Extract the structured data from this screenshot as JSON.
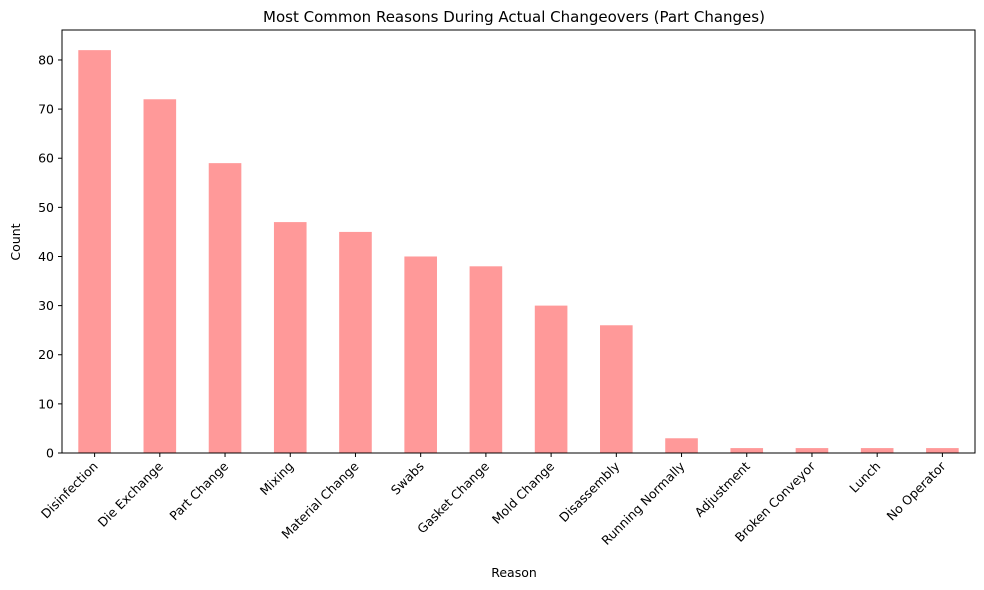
{
  "chart_data": {
    "type": "bar",
    "title": "Most Common Reasons During Actual Changeovers (Part Changes)",
    "xlabel": "Reason",
    "ylabel": "Count",
    "categories": [
      "Disinfection",
      "Die Exchange",
      "Part Change",
      "Mixing",
      "Material Change",
      "Swabs",
      "Gasket Change",
      "Mold Change",
      "Disassembly",
      "Running Normally",
      "Adjustment",
      "Broken Conveyor",
      "Lunch",
      "No Operator"
    ],
    "values": [
      82,
      72,
      59,
      47,
      45,
      40,
      38,
      30,
      26,
      3,
      1,
      1,
      1,
      1
    ],
    "ylim": [
      0,
      86.1
    ],
    "yticks": [
      0,
      10,
      20,
      30,
      40,
      50,
      60,
      70,
      80
    ],
    "grid": false,
    "legend": "none",
    "bar_color": "#ff9999",
    "xtick_rotation": 45
  }
}
